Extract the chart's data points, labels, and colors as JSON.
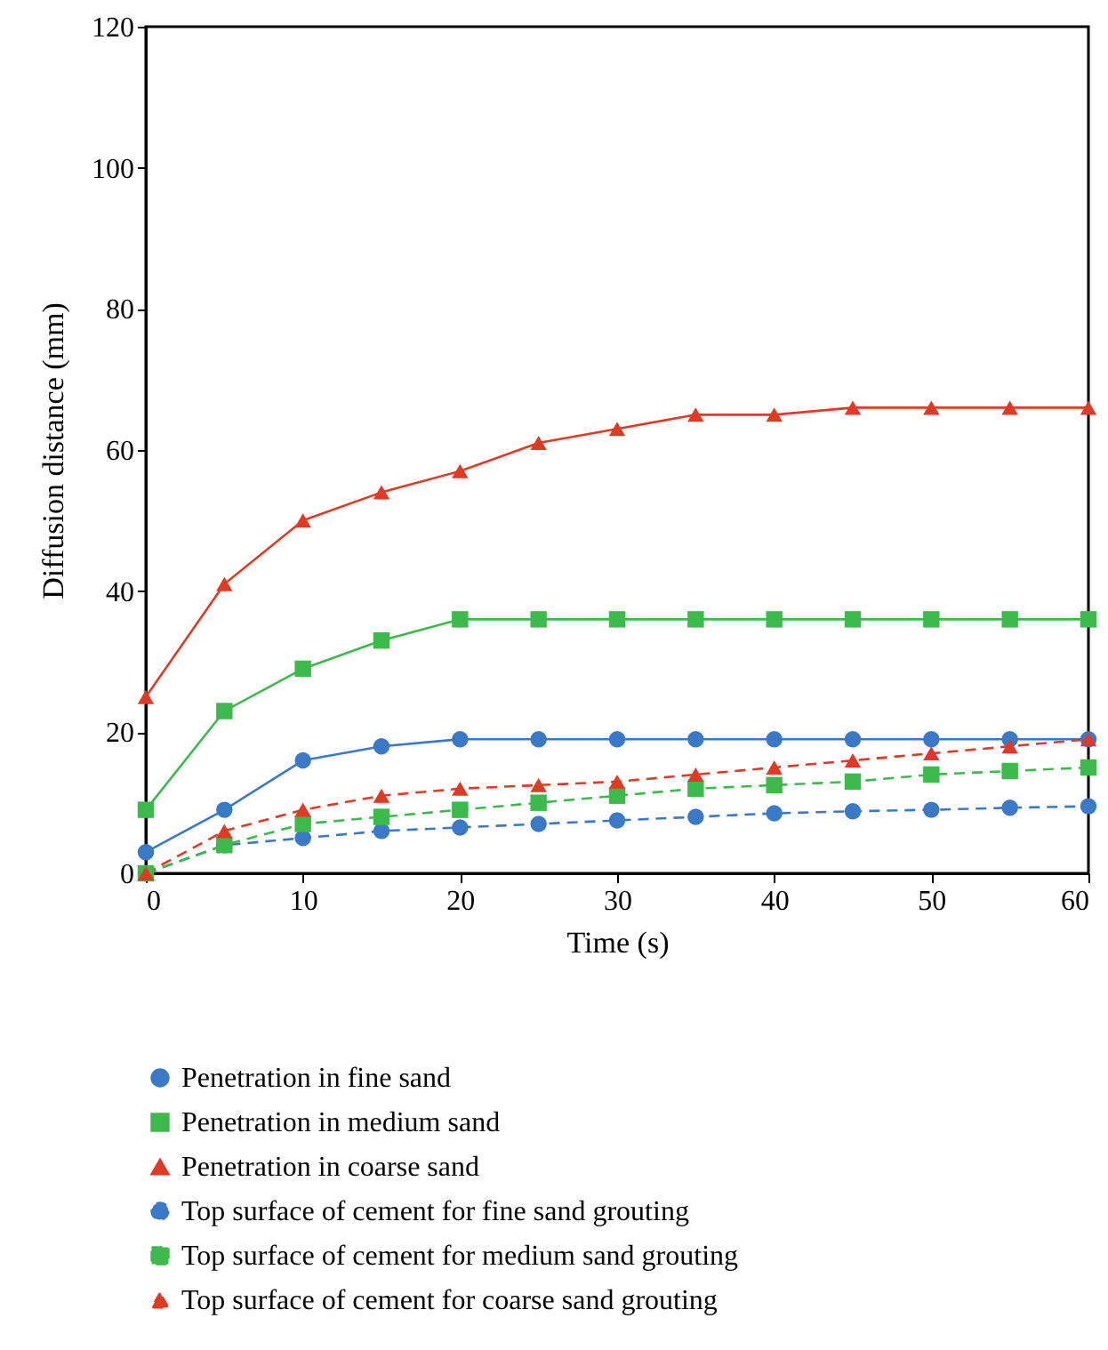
{
  "chart_data": {
    "type": "line",
    "xlabel": "Time (s)",
    "ylabel": "Diffusion distance (mm)",
    "x": [
      0,
      5,
      10,
      15,
      20,
      25,
      30,
      35,
      40,
      45,
      50,
      55,
      60
    ],
    "xlim": [
      0,
      60
    ],
    "xticks": [
      0,
      10,
      20,
      30,
      40,
      50,
      60
    ],
    "ylim": [
      0,
      120
    ],
    "yticks": [
      0,
      20,
      40,
      60,
      80,
      100,
      120
    ],
    "legend": "bottom",
    "series": [
      {
        "name": "Penetration in fine sand",
        "color": "#3a78c8",
        "marker": "circle",
        "line_style": "solid",
        "values": [
          3,
          9,
          16,
          18,
          19,
          19,
          19,
          19,
          19,
          19,
          19,
          19,
          19
        ]
      },
      {
        "name": "Penetration in medium sand",
        "color": "#3cba4c",
        "marker": "square",
        "line_style": "solid",
        "values": [
          9,
          23,
          29,
          33,
          36,
          36,
          36,
          36,
          36,
          36,
          36,
          36,
          36
        ]
      },
      {
        "name": "Penetration in coarse sand",
        "color": "#e03a24",
        "marker": "triangle",
        "line_style": "solid",
        "values": [
          25,
          41,
          50,
          54,
          57,
          61,
          63,
          65,
          65,
          66,
          66,
          66,
          66
        ]
      },
      {
        "name": "Top surface of cement for fine sand grouting",
        "color": "#3a78c8",
        "marker": "circle",
        "line_style": "dashed",
        "values": [
          0,
          4,
          5,
          6,
          6.5,
          7,
          7.5,
          8,
          8.5,
          8.8,
          9,
          9.3,
          9.5
        ]
      },
      {
        "name": "Top surface of cement for medium sand grouting",
        "color": "#3cba4c",
        "marker": "square",
        "line_style": "dashed",
        "values": [
          0,
          4,
          7,
          8,
          9,
          10,
          11,
          12,
          12.5,
          13,
          14,
          14.5,
          15
        ]
      },
      {
        "name": "Top surface of cement for coarse sand grouting",
        "color": "#e03a24",
        "marker": "triangle",
        "line_style": "dashed",
        "values": [
          0,
          6,
          9,
          11,
          12,
          12.5,
          13,
          14,
          15,
          16,
          17,
          18,
          19
        ]
      }
    ]
  }
}
